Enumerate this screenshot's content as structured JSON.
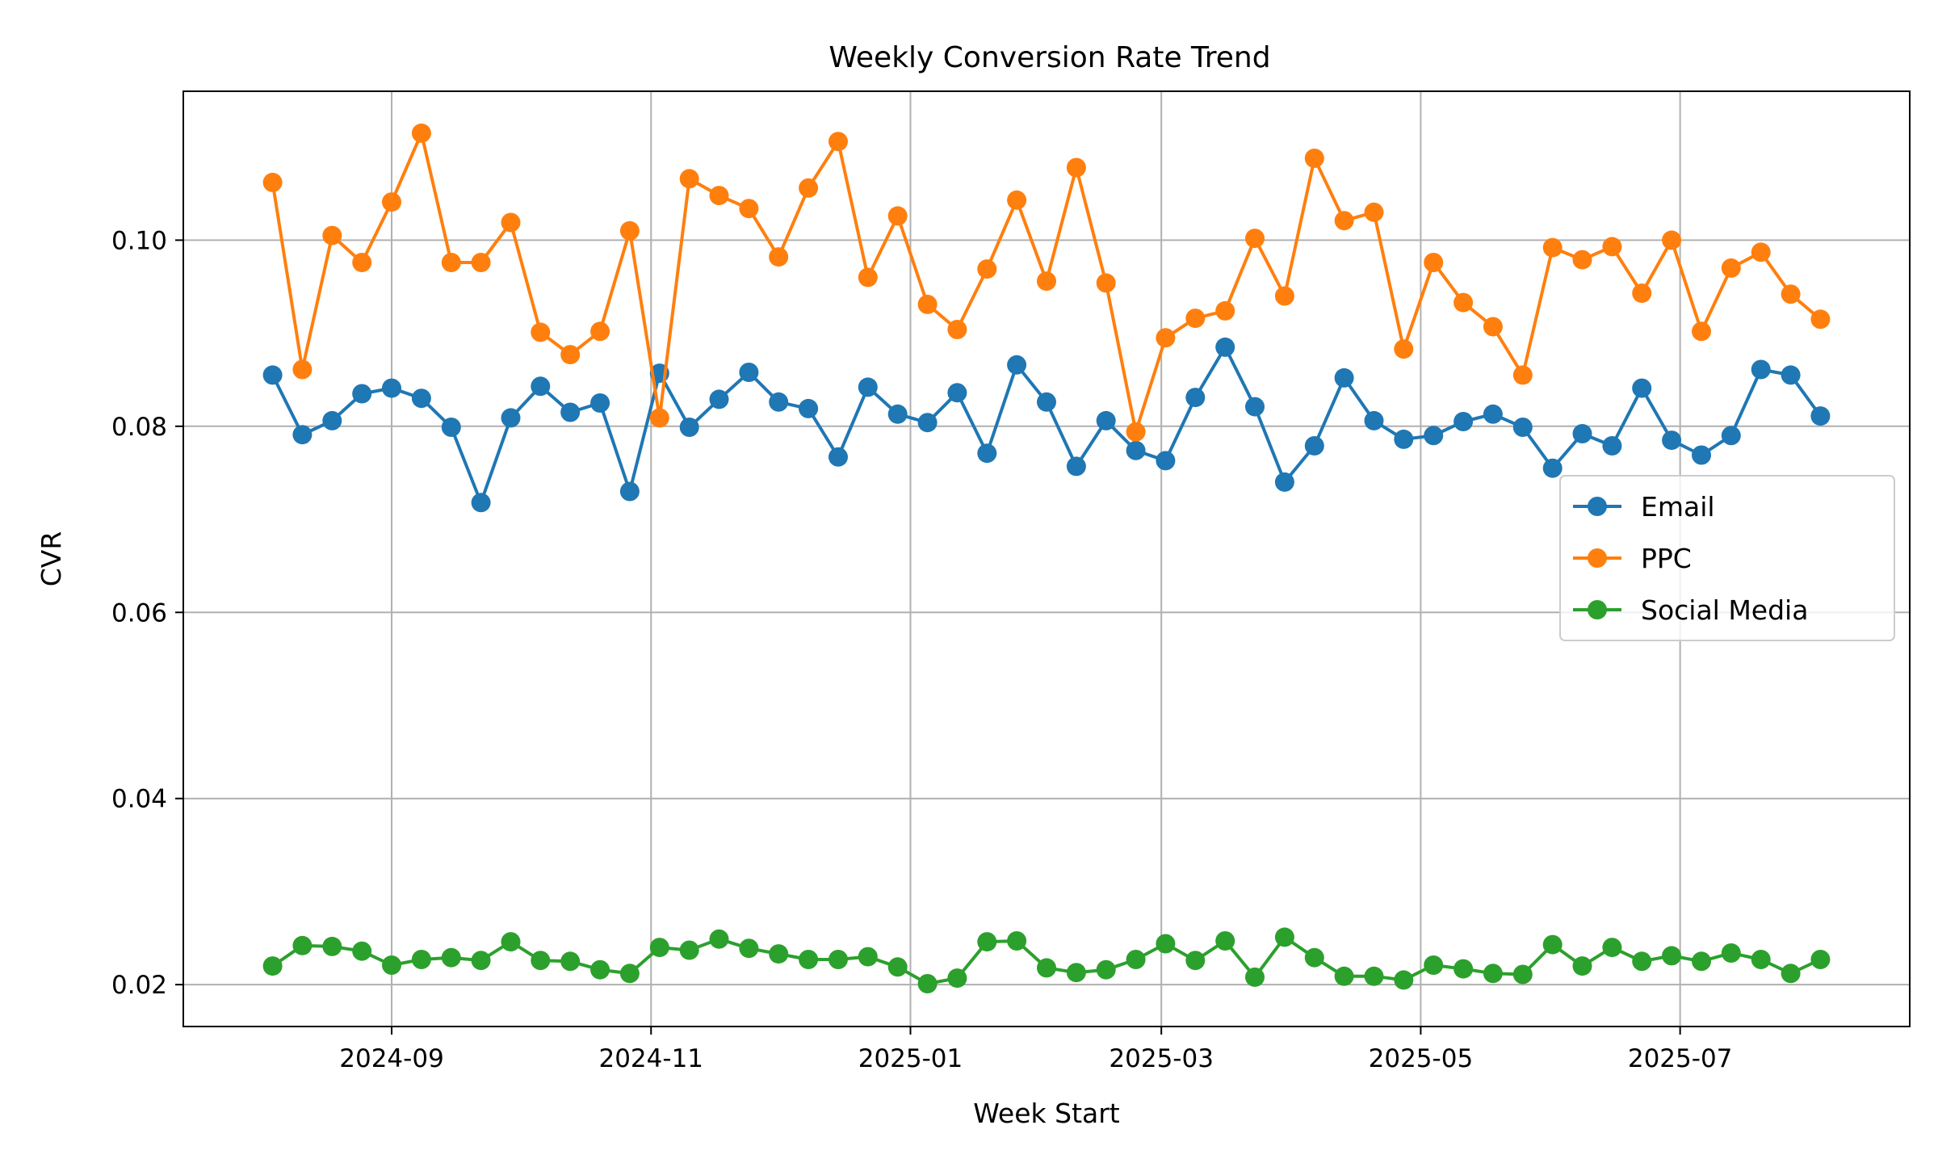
{
  "chart_data": {
    "type": "line",
    "title": "Weekly Conversion Rate Trend",
    "xlabel": "Week Start",
    "ylabel": "CVR",
    "x_type": "date",
    "x_start": "2024-08-04",
    "x_step_days": 7,
    "x_range": [
      "2024-07-14",
      "2025-08-24"
    ],
    "xticks": [
      "2024-09",
      "2024-11",
      "2025-01",
      "2025-03",
      "2025-05",
      "2025-07"
    ],
    "xtick_dates": [
      "2024-09-01",
      "2024-11-01",
      "2025-01-01",
      "2025-03-01",
      "2025-05-01",
      "2025-07-01"
    ],
    "ylim": [
      0.0155,
      0.116
    ],
    "yticks": [
      "0.02",
      "0.04",
      "0.06",
      "0.08",
      "0.10"
    ],
    "ytick_values": [
      0.02,
      0.04,
      0.06,
      0.08,
      0.1
    ],
    "grid": true,
    "legend_position": "center-right",
    "series": [
      {
        "name": "Email",
        "color": "#1f77b4",
        "values": [
          0.0855,
          0.0791,
          0.0806,
          0.0835,
          0.0841,
          0.083,
          0.0799,
          0.0718,
          0.0809,
          0.0843,
          0.0815,
          0.0825,
          0.073,
          0.0857,
          0.0799,
          0.0829,
          0.0858,
          0.0826,
          0.0819,
          0.0767,
          0.0842,
          0.0813,
          0.0804,
          0.0836,
          0.0771,
          0.0866,
          0.0826,
          0.0757,
          0.0806,
          0.0774,
          0.0763,
          0.0831,
          0.0885,
          0.0821,
          0.074,
          0.0779,
          0.0852,
          0.0806,
          0.0786,
          0.079,
          0.0805,
          0.0813,
          0.0799,
          0.0755,
          0.0792,
          0.0779,
          0.0841,
          0.0785,
          0.0769,
          0.079,
          0.0861,
          0.0855,
          0.0811
        ]
      },
      {
        "name": "PPC",
        "color": "#ff7f0e",
        "values": [
          0.1062,
          0.0861,
          0.1005,
          0.0976,
          0.1041,
          0.1115,
          0.0976,
          0.0976,
          0.1019,
          0.0901,
          0.0877,
          0.0902,
          0.101,
          0.0809,
          0.1066,
          0.1048,
          0.1034,
          0.0982,
          0.1056,
          0.1106,
          0.096,
          0.1026,
          0.0931,
          0.0904,
          0.0969,
          0.1043,
          0.0956,
          0.1078,
          0.0954,
          0.0794,
          0.0895,
          0.0916,
          0.0924,
          0.1002,
          0.094,
          0.1088,
          0.1021,
          0.103,
          0.0883,
          0.0976,
          0.0933,
          0.0907,
          0.0855,
          0.0992,
          0.0979,
          0.0993,
          0.0943,
          0.1,
          0.0902,
          0.097,
          0.0987,
          0.0942,
          0.0915
        ]
      },
      {
        "name": "Social Media",
        "color": "#2ca02c",
        "values": [
          0.022,
          0.0242,
          0.0241,
          0.0236,
          0.0221,
          0.0227,
          0.0229,
          0.0226,
          0.0246,
          0.0226,
          0.0225,
          0.0216,
          0.0212,
          0.024,
          0.0237,
          0.0249,
          0.0239,
          0.0233,
          0.0227,
          0.0227,
          0.023,
          0.0219,
          0.0201,
          0.0207,
          0.0246,
          0.0247,
          0.0218,
          0.0213,
          0.0216,
          0.0227,
          0.0244,
          0.0226,
          0.0247,
          0.0208,
          0.0251,
          0.0229,
          0.0209,
          0.0209,
          0.0205,
          0.0221,
          0.0217,
          0.0212,
          0.0211,
          0.0243,
          0.022,
          0.024,
          0.0225,
          0.0231,
          0.0225,
          0.0234,
          0.0227,
          0.0212,
          0.0227
        ]
      }
    ]
  }
}
